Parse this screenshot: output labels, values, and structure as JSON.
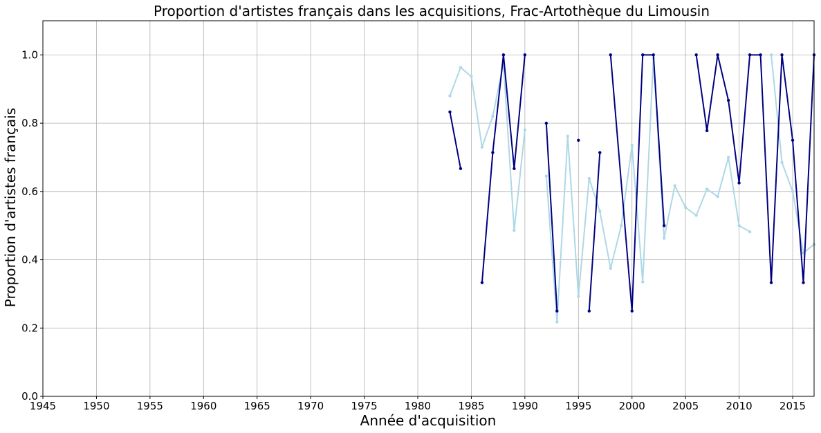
{
  "chart_data": {
    "type": "line",
    "title": "Proportion d'artistes français dans les acquisitions, Frac-Artothèque du Limousin",
    "xlabel": "Année d'acquisition",
    "ylabel": "Proportion d'artistes français",
    "xlim": [
      1945,
      2017
    ],
    "ylim": [
      0,
      1.1
    ],
    "xticks": [
      1945,
      1950,
      1955,
      1960,
      1965,
      1970,
      1975,
      1980,
      1985,
      1990,
      1995,
      2000,
      2005,
      2010,
      2015
    ],
    "yticks": [
      0.0,
      0.2,
      0.4,
      0.6,
      0.8,
      1.0
    ],
    "xtick_labels": [
      "1945",
      "1950",
      "1955",
      "1960",
      "1965",
      "1970",
      "1975",
      "1980",
      "1985",
      "1990",
      "1995",
      "2000",
      "2005",
      "2010",
      "2015"
    ],
    "ytick_labels": [
      "0.0",
      "0.2",
      "0.4",
      "0.6",
      "0.8",
      "1.0"
    ],
    "grid": true,
    "series": [
      {
        "color": "#add8e6",
        "points": [
          [
            1983,
            0.88
          ],
          [
            1984,
            0.963
          ],
          [
            1985,
            0.937
          ],
          [
            1986,
            0.73
          ],
          [
            1987,
            0.82
          ],
          [
            1988,
            0.975
          ],
          [
            1989,
            0.486
          ],
          [
            1990,
            0.78
          ],
          [
            1992,
            0.645
          ],
          [
            1993,
            0.218
          ],
          [
            1994,
            0.762
          ],
          [
            1995,
            0.293
          ],
          [
            1996,
            0.638
          ],
          [
            1997,
            0.542
          ],
          [
            1998,
            0.375
          ],
          [
            1999,
            0.5
          ],
          [
            2000,
            0.735
          ],
          [
            2001,
            0.335
          ],
          [
            2002,
            0.99
          ],
          [
            2003,
            0.463
          ],
          [
            2004,
            0.617
          ],
          [
            2005,
            0.553
          ],
          [
            2006,
            0.53
          ],
          [
            2007,
            0.607
          ],
          [
            2008,
            0.585
          ],
          [
            2009,
            0.7
          ],
          [
            2010,
            0.5
          ],
          [
            2011,
            0.482
          ],
          [
            2013,
            1.0
          ],
          [
            2014,
            0.685
          ],
          [
            2015,
            0.6
          ],
          [
            2016,
            0.42
          ],
          [
            2017,
            0.445
          ]
        ],
        "segments": [
          [
            0,
            7
          ],
          [
            8,
            27
          ],
          [
            28,
            32
          ]
        ]
      },
      {
        "color": "#000080",
        "points": [
          [
            1983,
            0.833
          ],
          [
            1984,
            0.667
          ],
          [
            1986,
            0.333
          ],
          [
            1987,
            0.714
          ],
          [
            1988,
            1.0
          ],
          [
            1989,
            0.667
          ],
          [
            1990,
            1.0
          ],
          [
            1992,
            0.8
          ],
          [
            1993,
            0.25
          ],
          [
            1995,
            0.75
          ],
          [
            1996,
            0.25
          ],
          [
            1997,
            0.714
          ],
          [
            1998,
            1.0
          ],
          [
            2000,
            0.25
          ],
          [
            2001,
            1.0
          ],
          [
            2002,
            1.0
          ],
          [
            2003,
            0.5
          ],
          [
            2006,
            1.0
          ],
          [
            2007,
            0.778
          ],
          [
            2008,
            1.0
          ],
          [
            2009,
            0.867
          ],
          [
            2010,
            0.625
          ],
          [
            2011,
            1.0
          ],
          [
            2012,
            1.0
          ],
          [
            2013,
            0.333
          ],
          [
            2014,
            1.0
          ],
          [
            2015,
            0.75
          ],
          [
            2016,
            0.333
          ],
          [
            2017,
            1.0
          ]
        ],
        "segments": [
          [
            0,
            1
          ],
          [
            2,
            6
          ],
          [
            7,
            8
          ],
          [
            9,
            9
          ],
          [
            10,
            11
          ],
          [
            12,
            16
          ],
          [
            17,
            28
          ]
        ]
      }
    ]
  }
}
